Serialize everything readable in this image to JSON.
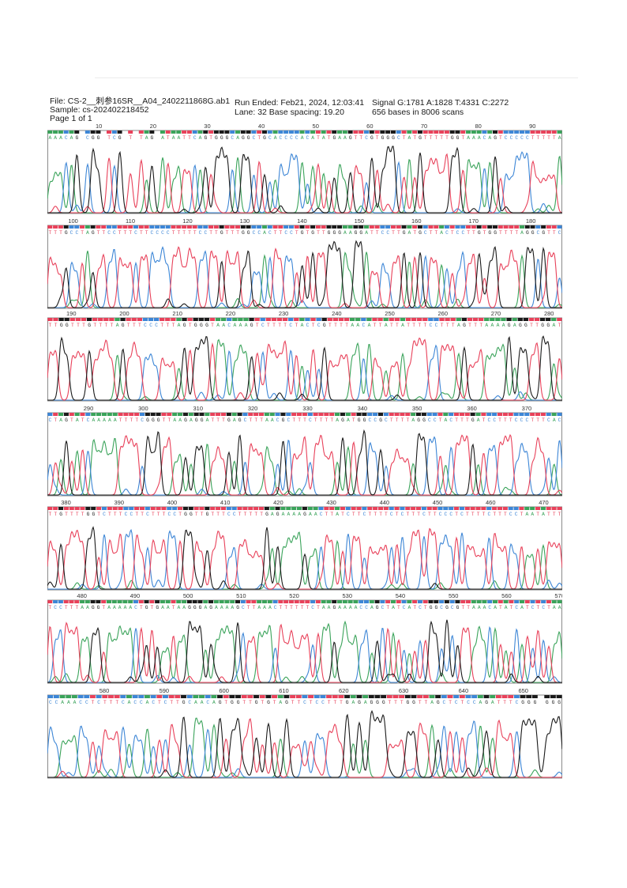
{
  "header": {
    "file": "File: CS-2__刺参16SR__A04_2402211868G.ab1",
    "sample": "Sample: cs-202402218452",
    "page": "Page 1 of 1",
    "run_ended": "Run Ended:  Feb21, 2024,  12:03:41",
    "lane": "Lane: 32   Base spacing: 19.20",
    "signal": "Signal G:1781 A:1828 T:4331 C:2272",
    "bases": "656 bases in 8006 scans"
  },
  "colors": {
    "A": "#3aa35a",
    "C": "#3d86d6",
    "G": "#1a1a1a",
    "T": "#e8415a"
  },
  "chart_data": {
    "type": "line",
    "title": "",
    "xlabel": "",
    "ylabel": "",
    "series": [
      {
        "name": "A",
        "color": "#3aa35a"
      },
      {
        "name": "C",
        "color": "#3d86d6"
      },
      {
        "name": "G",
        "color": "#1a1a1a"
      },
      {
        "name": "T",
        "color": "#e8415a"
      }
    ],
    "rows": [
      {
        "start": 1,
        "end": 95,
        "ticks": [
          10,
          20,
          30,
          40,
          50,
          60,
          70,
          80,
          90
        ],
        "sequence": "AAACAG CGG TCG T TAG ATAATTCAGTGGGCAGGCTGCACCCCACATATGAAGTTCGTGGGCTATGTTTTTGGTAAACAGTCCCCCTTTTTA"
      },
      {
        "start": 96,
        "end": 185,
        "ticks": [
          100,
          110,
          120,
          130,
          140,
          150,
          160,
          170,
          180
        ],
        "sequence": "TTTGCCTAGTTCCTTTCTTCCCCTTTTTCCTTGTTTGGCCACTTCCTGTGTTGGGAAGGATTCCTTGATGCTTACTCCTTGTGGTTTTAGGCGTTC"
      },
      {
        "start": 186,
        "end": 282,
        "ticks": [
          190,
          200,
          210,
          220,
          230,
          240,
          250,
          260,
          270,
          280
        ],
        "sequence": "TTGGTTTGTTTTAGTTTCCCTTTAGTGGGTAACAAAGTCTTTTCTACTCGTTTTAACATTATTATTTTCCTTTAGTTTAAAAGAGGTTGGAT"
      },
      {
        "start": 283,
        "end": 376,
        "ticks": [
          290,
          300,
          310,
          320,
          330,
          340,
          350,
          360,
          370
        ],
        "sequence": "CTAGTATCAAAAATTTTCGGGTTAAGAGGATTTGAGCTTTAACGCTTTCTTTTAGATGGCCGCTTTTAGGCCTACTTTGATCCTTTCCCTTTCAC"
      },
      {
        "start": 377,
        "end": 473,
        "ticks": [
          380,
          390,
          400,
          410,
          420,
          430,
          440,
          450,
          460,
          470
        ],
        "sequence": "TTGTTTTGGTCTTTCCTTCTTTCCTGGTTGTTTCCTTTTTGAGAAAAGAACTTATCTTCTTTTCTCTTTCTTCCCTCTTTTCTTTCCTAATATTT"
      },
      {
        "start": 474,
        "end": 570,
        "ticks": [
          480,
          490,
          500,
          510,
          520,
          530,
          540,
          550,
          560,
          570
        ],
        "sequence": "TCCTTTAAGGTAAAAACTGTGAATAAGGGAGAAAAGCTTAAACTTTTTTCTAAGAAAACCAGCTATCATCTGGCGCGTTAAACATATCATCTCTAA"
      },
      {
        "start": 571,
        "end": 656,
        "ticks": [
          580,
          590,
          600,
          610,
          620,
          630,
          640,
          650
        ],
        "sequence": "CCAAACCTCTTTCACCACTCTTGCAACAGTGGTTGTGTAGTTCTCCTTTGAGAGGGTTTGGTTAGCTCTCCAGATTTCGGG GGG"
      }
    ]
  }
}
